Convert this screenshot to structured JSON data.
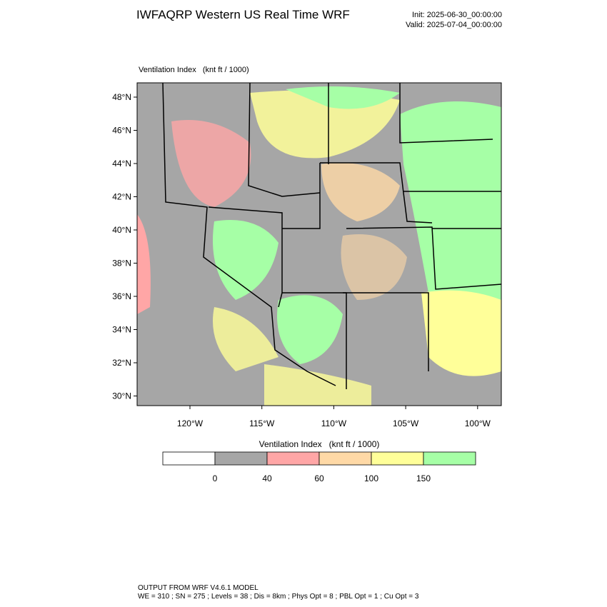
{
  "header": {
    "title": "IWFAQRP Western US Real Time WRF",
    "init": "Init: 2025-06-30_00:00:00",
    "valid": "Valid: 2025-07-04_00:00:00"
  },
  "map": {
    "field_label": "Ventilation Index   (knt ft / 1000)",
    "lat_labels": [
      "48°N",
      "46°N",
      "44°N",
      "42°N",
      "40°N",
      "38°N",
      "36°N",
      "34°N",
      "32°N",
      "30°N"
    ],
    "lon_labels": [
      "120°W",
      "115°W",
      "110°W",
      "105°W",
      "100°W"
    ]
  },
  "colorbar": {
    "title": "Ventilation Index   (knt ft / 1000)",
    "levels": [
      0,
      40,
      60,
      100,
      150
    ],
    "colors": [
      "#ffffff",
      "#a6a6a6",
      "#ffa6a6",
      "#ffd9a6",
      "#ffff99",
      "#a6ffa6"
    ]
  },
  "footer": {
    "line1": "OUTPUT FROM WRF V4.6.1 MODEL",
    "line2": "WE = 310 ; SN = 275 ; Levels = 38 ; Dis = 8km ; Phys Opt = 8 ; PBL Opt = 1 ; Cu Opt = 3"
  }
}
